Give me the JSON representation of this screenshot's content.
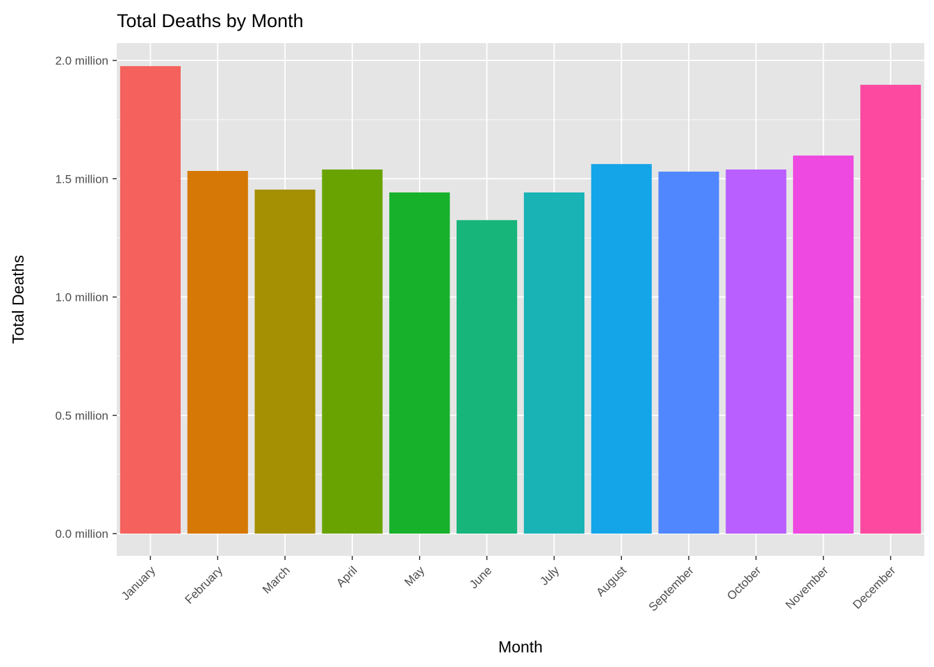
{
  "chart_data": {
    "type": "bar",
    "title": "Total Deaths by Month",
    "xlabel": "Month",
    "ylabel": "Total Deaths",
    "categories": [
      "January",
      "February",
      "March",
      "April",
      "May",
      "June",
      "July",
      "August",
      "September",
      "October",
      "November",
      "December"
    ],
    "values": [
      1.976,
      1.533,
      1.454,
      1.539,
      1.442,
      1.325,
      1.442,
      1.562,
      1.53,
      1.539,
      1.598,
      1.897
    ],
    "value_unit": "million",
    "ylim": [
      -0.1,
      2.07
    ],
    "yticks": [
      0,
      0.5,
      1.0,
      1.5,
      2.0
    ],
    "ytick_labels": [
      "0.0 million",
      "0.5 million",
      "1.0 million",
      "1.5 million",
      "2.0 million"
    ],
    "grid": true,
    "legend": "none",
    "colors": [
      "#F5615C",
      "#D57806",
      "#A58F02",
      "#69A302",
      "#17B12B",
      "#17B57A",
      "#19B3B6",
      "#14A5E9",
      "#5087FF",
      "#B95EFF",
      "#EE49E0",
      "#FD4AA0"
    ],
    "panel_background": "#E5E5E5"
  }
}
